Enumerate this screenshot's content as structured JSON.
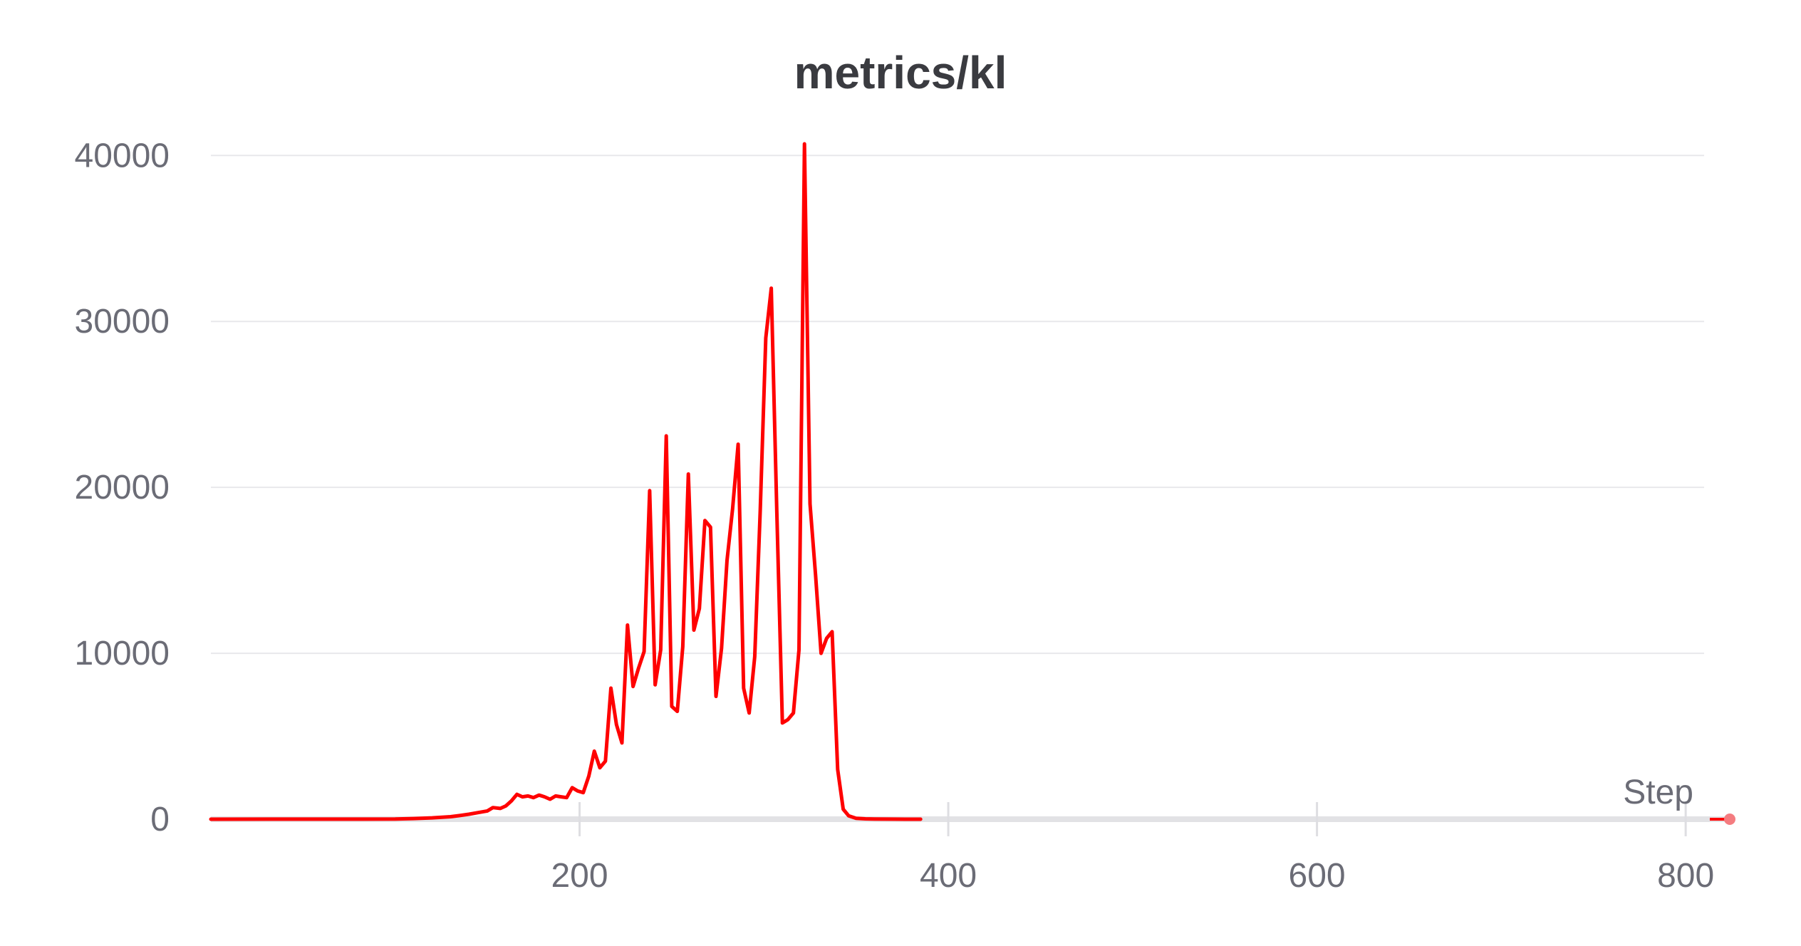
{
  "chart_data": {
    "type": "line",
    "title": "metrics/kl",
    "xlabel": "Step",
    "ylabel": "",
    "xlim": [
      0,
      810
    ],
    "ylim": [
      0,
      41000
    ],
    "x_ticks": [
      200,
      400,
      600,
      800
    ],
    "y_ticks": [
      0,
      10000,
      20000,
      30000,
      40000
    ],
    "grid": true,
    "line_color": "#ff0000",
    "series": [
      {
        "x": [
          0,
          100,
          110,
          120,
          130,
          135,
          140,
          145,
          150,
          153,
          157,
          160,
          163,
          166,
          169,
          172,
          175,
          178,
          181,
          184,
          187,
          190,
          193,
          196,
          199,
          202,
          205,
          208,
          211,
          214,
          217,
          220,
          223,
          226,
          229,
          232,
          235,
          238,
          241,
          244,
          247,
          250,
          253,
          256,
          259,
          262,
          265,
          268,
          271,
          274,
          277,
          280,
          283,
          286,
          289,
          292,
          295,
          298,
          301,
          304,
          307,
          310,
          313,
          316,
          319,
          322,
          325,
          328,
          331,
          334,
          337,
          340,
          343,
          346,
          350,
          355,
          360,
          370,
          385
        ],
        "y": [
          0,
          10,
          40,
          80,
          150,
          220,
          300,
          400,
          500,
          700,
          650,
          800,
          1100,
          1500,
          1350,
          1400,
          1300,
          1450,
          1350,
          1200,
          1400,
          1350,
          1300,
          1900,
          1700,
          1600,
          2600,
          4100,
          3100,
          3500,
          7900,
          5700,
          4600,
          11700,
          8000,
          9100,
          10100,
          19800,
          8100,
          10200,
          23100,
          6800,
          6500,
          10400,
          20800,
          11400,
          12700,
          18000,
          17600,
          7400,
          10300,
          15600,
          18700,
          22600,
          7900,
          6400,
          9800,
          18600,
          29000,
          32000,
          18500,
          5800,
          6000,
          6400,
          10200,
          40700,
          19000,
          14700,
          10000,
          10900,
          11300,
          3000,
          600,
          200,
          50,
          20,
          10,
          5,
          0
        ]
      }
    ]
  }
}
